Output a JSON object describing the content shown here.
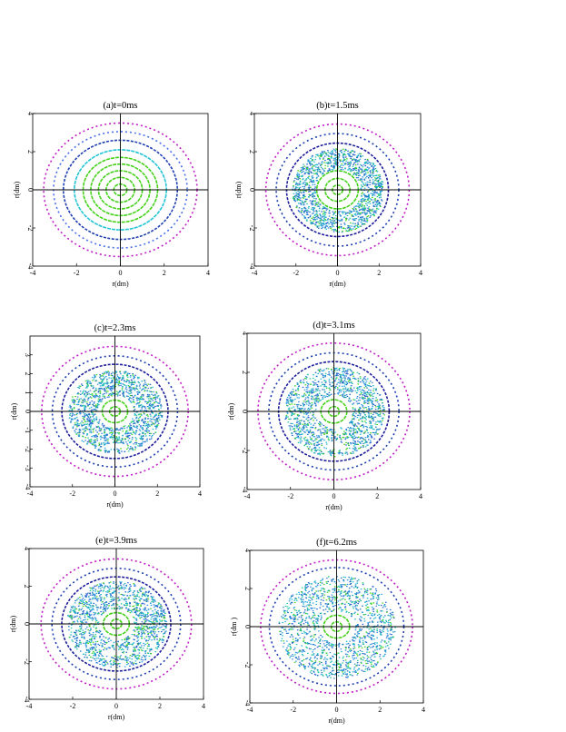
{
  "chart_data": [
    {
      "type": "scatter",
      "title": "(a)t=0ms",
      "xlabel": "r(dm)",
      "ylabel": "r(dm)",
      "xlim": [
        -4,
        4
      ],
      "ylim": [
        -4,
        4
      ],
      "xticks": [
        "-4",
        "-2",
        "0",
        "2",
        "4"
      ],
      "yticks": [
        "4",
        "2",
        "0",
        "-2",
        "-4"
      ],
      "rings": [
        {
          "r": 0.3,
          "color": "#44d21a"
        },
        {
          "r": 0.65,
          "color": "#44d21a"
        },
        {
          "r": 1.0,
          "color": "#44d21a"
        },
        {
          "r": 1.35,
          "color": "#44d21a"
        },
        {
          "r": 1.7,
          "color": "#44d21a"
        },
        {
          "r": 2.1,
          "color": "#22c4d6"
        },
        {
          "r": 2.6,
          "color": "#1e3fb0"
        },
        {
          "r": 3.05,
          "color": "#4a70ea"
        },
        {
          "r": 3.5,
          "color": "#c01fc6"
        }
      ],
      "cloud": null
    },
    {
      "type": "scatter",
      "title": "(b)t=1.5ms",
      "xlabel": "r(dm)",
      "ylabel": "r(dm)",
      "xlim": [
        -4,
        4
      ],
      "ylim": [
        -4,
        4
      ],
      "xticks": [
        "-4",
        "-2",
        "0",
        "2",
        "4"
      ],
      "yticks": [
        "4",
        "2",
        "0",
        "-2",
        "-4"
      ],
      "rings": [
        {
          "r": 0.25,
          "color": "#44d21a"
        },
        {
          "r": 0.6,
          "color": "#44d21a"
        },
        {
          "r": 1.0,
          "color": "#44d21a"
        },
        {
          "r": 2.45,
          "color": "#1e1e9c"
        },
        {
          "r": 2.95,
          "color": "#1e3fb0"
        },
        {
          "r": 3.45,
          "color": "#c01fc6"
        }
      ],
      "cloud": {
        "inner": 1.1,
        "outer": 2.2,
        "hole": null
      }
    },
    {
      "type": "scatter",
      "title": "(c)t=2.3ms",
      "xlabel": "r(dm)",
      "ylabel": "r(dm)",
      "xlim": [
        -4,
        4
      ],
      "ylim": [
        -4,
        4
      ],
      "xticks": [
        "-4",
        "-2",
        "0",
        "2",
        "4"
      ],
      "yticks": [
        "3",
        "2",
        "1",
        "0",
        "-1",
        "-2",
        "-3",
        "-4"
      ],
      "rings": [
        {
          "r": 0.25,
          "color": "#44d21a"
        },
        {
          "r": 0.6,
          "color": "#44d21a"
        },
        {
          "r": 2.5,
          "color": "#1e1e9c"
        },
        {
          "r": 2.95,
          "color": "#1e3fb0"
        },
        {
          "r": 3.45,
          "color": "#c01fc6"
        }
      ],
      "cloud": {
        "inner": 0.85,
        "outer": 2.2,
        "hole": {
          "x": 0.0,
          "y": -1.8,
          "rx": 0.55,
          "ry": 0.15
        }
      }
    },
    {
      "type": "scatter",
      "title": "(d)t=3.1ms",
      "xlabel": "r(dm)",
      "ylabel": "r(dm)",
      "xlim": [
        -4,
        4
      ],
      "ylim": [
        -4,
        4
      ],
      "xticks": [
        "-4",
        "-2",
        "0",
        "2",
        "4"
      ],
      "yticks": [
        "4",
        "2",
        "0",
        "-2",
        "-4"
      ],
      "rings": [
        {
          "r": 0.25,
          "color": "#44d21a"
        },
        {
          "r": 0.6,
          "color": "#44d21a"
        },
        {
          "r": 2.55,
          "color": "#1e1e9c"
        },
        {
          "r": 3.0,
          "color": "#1e3fb0"
        },
        {
          "r": 3.5,
          "color": "#c01fc6"
        }
      ],
      "cloud": {
        "inner": 0.85,
        "outer": 2.3,
        "hole": {
          "x": 0.1,
          "y": -1.8,
          "rx": 0.5,
          "ry": 0.13
        }
      }
    },
    {
      "type": "scatter",
      "title": "(e)t=3.9ms",
      "xlabel": "r(dm)",
      "ylabel": "r(dm)",
      "xlim": [
        -4,
        4
      ],
      "ylim": [
        -4,
        4
      ],
      "xticks": [
        "-4",
        "-2",
        "0",
        "2",
        "4"
      ],
      "yticks": [
        "4",
        "2",
        "0",
        "-2",
        "-4"
      ],
      "rings": [
        {
          "r": 0.25,
          "color": "#44d21a"
        },
        {
          "r": 0.6,
          "color": "#44d21a"
        },
        {
          "r": 2.5,
          "color": "#1e1e9c"
        },
        {
          "r": 2.95,
          "color": "#1e3fb0"
        },
        {
          "r": 3.45,
          "color": "#c01fc6"
        }
      ],
      "cloud": {
        "inner": 0.8,
        "outer": 2.3,
        "hole": {
          "x": -0.3,
          "y": -1.5,
          "rx": 0.45,
          "ry": 0.18
        }
      }
    },
    {
      "type": "scatter",
      "title": "(f)t=6.2ms",
      "xlabel": "r(dm)",
      "ylabel": "r(dm )",
      "xlim": [
        -4,
        4
      ],
      "ylim": [
        -4,
        4
      ],
      "xticks": [
        "-4",
        "-2",
        "0",
        "2",
        "4"
      ],
      "yticks": [
        "4",
        "2",
        "0",
        "-2",
        "-4"
      ],
      "rings": [
        {
          "r": 0.25,
          "color": "#44d21a"
        },
        {
          "r": 0.6,
          "color": "#44d21a"
        },
        {
          "r": 3.1,
          "color": "#1e3fb0"
        },
        {
          "r": 3.5,
          "color": "#c01fc6"
        }
      ],
      "cloud": {
        "inner": 0.85,
        "outer": 2.7,
        "hole": null
      }
    }
  ]
}
